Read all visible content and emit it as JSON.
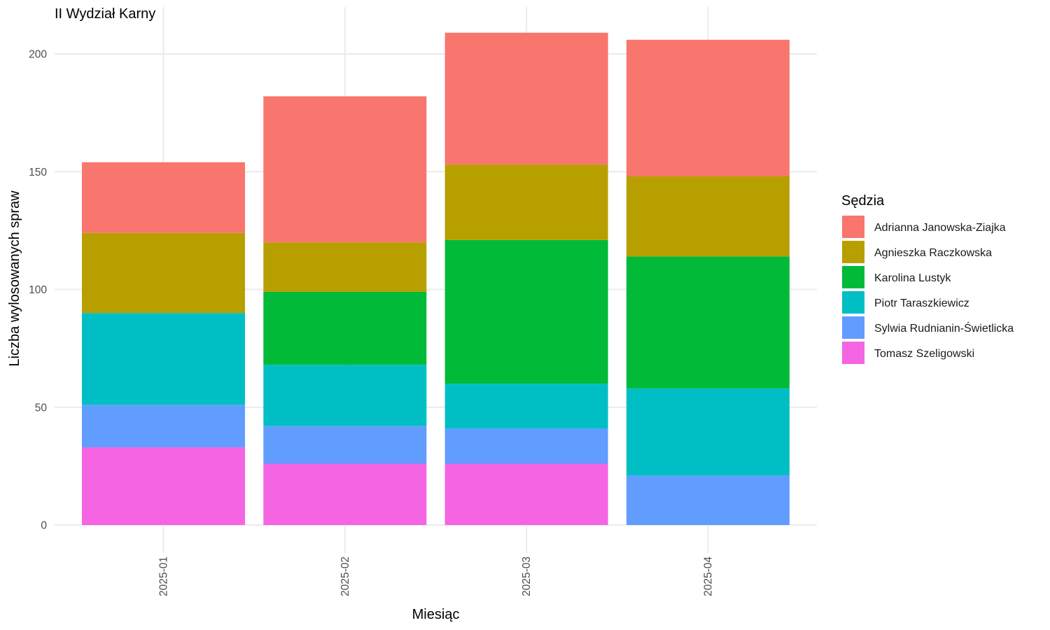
{
  "chart_data": {
    "type": "bar",
    "stacked": true,
    "title": "II Wydział Karny",
    "xlabel": "Miesiąc",
    "ylabel": "Liczba wylosowanych spraw",
    "ylim": [
      0,
      210
    ],
    "yticks": [
      0,
      50,
      100,
      150,
      200
    ],
    "grid": true,
    "categories": [
      "2025-01",
      "2025-02",
      "2025-03",
      "2025-04"
    ],
    "legend": {
      "title": "Sędzia",
      "position": "right"
    },
    "series": [
      {
        "name": "Adrianna Janowska-Ziajka",
        "color": "#F8766D",
        "values": [
          30,
          62,
          56,
          58
        ]
      },
      {
        "name": "Agnieszka Raczkowska",
        "color": "#B79F00",
        "values": [
          34,
          21,
          32,
          34
        ]
      },
      {
        "name": "Karolina Lustyk",
        "color": "#00BA38",
        "values": [
          0,
          31,
          61,
          56
        ]
      },
      {
        "name": "Piotr Taraszkiewicz",
        "color": "#00BFC4",
        "values": [
          39,
          26,
          19,
          37
        ]
      },
      {
        "name": "Sylwia Rudnianin-Świetlicka",
        "color": "#619CFF",
        "values": [
          18,
          16,
          15,
          21
        ]
      },
      {
        "name": "Tomasz Szeligowski",
        "color": "#F564E3",
        "values": [
          33,
          26,
          26,
          0
        ]
      }
    ]
  }
}
